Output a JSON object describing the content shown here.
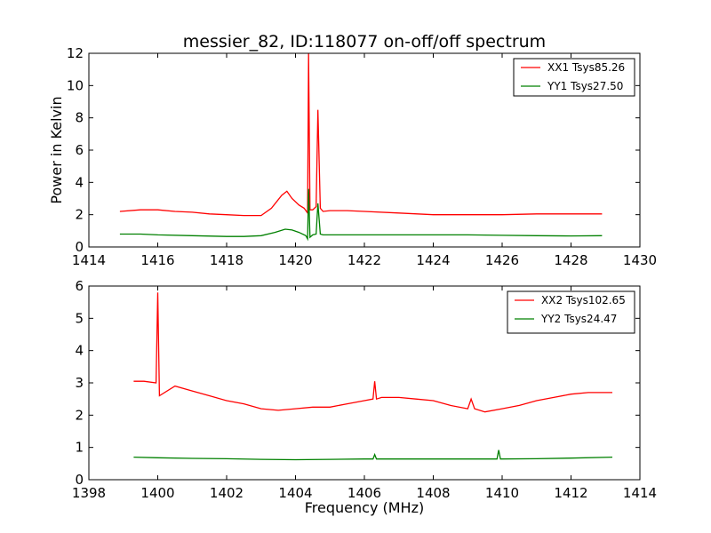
{
  "figure": {
    "title": "messier_82, ID:118077 on-off/off spectrum",
    "ylabel": "Power in Kelvin",
    "xlabel": "Frequency (MHz)"
  },
  "chart_data": [
    {
      "type": "line",
      "title": "messier_82, ID:118077 on-off/off spectrum",
      "xlabel": "",
      "ylabel": "Power in Kelvin",
      "xlim": [
        1414,
        1430
      ],
      "ylim": [
        0,
        12
      ],
      "xticks": [
        1414,
        1416,
        1418,
        1420,
        1422,
        1424,
        1426,
        1428,
        1430
      ],
      "yticks": [
        0,
        2,
        4,
        6,
        8,
        10,
        12
      ],
      "grid": false,
      "legend": "top-right",
      "series": [
        {
          "name": "XX1 Tsys85.26",
          "color": "#ff0000",
          "x": [
            1414.9,
            1415.5,
            1416.0,
            1416.5,
            1417.0,
            1417.5,
            1418.0,
            1418.5,
            1419.0,
            1419.3,
            1419.6,
            1419.75,
            1419.9,
            1420.1,
            1420.25,
            1420.35,
            1420.38,
            1420.42,
            1420.5,
            1420.6,
            1420.65,
            1420.72,
            1420.8,
            1421.0,
            1421.5,
            1422.0,
            1423.0,
            1424.0,
            1425.0,
            1426.0,
            1427.0,
            1428.0,
            1428.9
          ],
          "y": [
            2.2,
            2.3,
            2.3,
            2.2,
            2.15,
            2.05,
            2.0,
            1.95,
            1.95,
            2.4,
            3.2,
            3.45,
            3.0,
            2.6,
            2.4,
            2.1,
            12.0,
            2.3,
            2.3,
            2.5,
            8.5,
            2.4,
            2.2,
            2.25,
            2.25,
            2.2,
            2.1,
            2.0,
            2.0,
            2.0,
            2.05,
            2.05,
            2.05
          ]
        },
        {
          "name": "YY1 Tsys27.50",
          "color": "#008000",
          "x": [
            1414.9,
            1415.5,
            1416.0,
            1417.0,
            1418.0,
            1418.5,
            1419.0,
            1419.4,
            1419.7,
            1419.9,
            1420.1,
            1420.3,
            1420.35,
            1420.38,
            1420.42,
            1420.5,
            1420.6,
            1420.65,
            1420.72,
            1420.8,
            1421.0,
            1422.0,
            1423.0,
            1424.0,
            1425.0,
            1426.0,
            1427.0,
            1428.0,
            1428.9
          ],
          "y": [
            0.8,
            0.8,
            0.75,
            0.7,
            0.65,
            0.65,
            0.7,
            0.9,
            1.1,
            1.05,
            0.9,
            0.7,
            0.5,
            3.6,
            0.6,
            0.75,
            0.8,
            2.7,
            0.8,
            0.75,
            0.75,
            0.75,
            0.75,
            0.75,
            0.75,
            0.72,
            0.7,
            0.68,
            0.7
          ]
        }
      ]
    },
    {
      "type": "line",
      "title": "",
      "xlabel": "Frequency (MHz)",
      "ylabel": "",
      "xlim": [
        1398,
        1414
      ],
      "ylim": [
        0,
        6
      ],
      "xticks": [
        1398,
        1400,
        1402,
        1404,
        1406,
        1408,
        1410,
        1412,
        1414
      ],
      "yticks": [
        0,
        1,
        2,
        3,
        4,
        5,
        6
      ],
      "grid": false,
      "legend": "top-right",
      "series": [
        {
          "name": "XX2 Tsys102.65",
          "color": "#ff0000",
          "x": [
            1399.3,
            1399.6,
            1399.95,
            1400.0,
            1400.05,
            1400.5,
            1401.0,
            1401.5,
            1402.0,
            1402.5,
            1403.0,
            1403.5,
            1404.0,
            1404.5,
            1405.0,
            1405.5,
            1406.0,
            1406.25,
            1406.3,
            1406.35,
            1406.5,
            1407.0,
            1407.5,
            1408.0,
            1408.5,
            1409.0,
            1409.1,
            1409.2,
            1409.5,
            1410.0,
            1410.5,
            1411.0,
            1411.5,
            1412.0,
            1412.5,
            1413.2
          ],
          "y": [
            3.05,
            3.05,
            3.0,
            5.8,
            2.6,
            2.9,
            2.75,
            2.6,
            2.45,
            2.35,
            2.2,
            2.15,
            2.2,
            2.25,
            2.25,
            2.35,
            2.45,
            2.5,
            3.05,
            2.5,
            2.55,
            2.55,
            2.5,
            2.45,
            2.3,
            2.2,
            2.5,
            2.2,
            2.1,
            2.2,
            2.3,
            2.45,
            2.55,
            2.65,
            2.7,
            2.7
          ]
        },
        {
          "name": "YY2 Tsys24.47",
          "color": "#008000",
          "x": [
            1399.3,
            1400.0,
            1401.0,
            1402.0,
            1403.0,
            1404.0,
            1405.0,
            1406.0,
            1406.25,
            1406.3,
            1406.35,
            1407.0,
            1408.0,
            1409.0,
            1409.85,
            1409.9,
            1409.95,
            1411.0,
            1412.0,
            1413.2
          ],
          "y": [
            0.7,
            0.68,
            0.66,
            0.65,
            0.63,
            0.62,
            0.63,
            0.64,
            0.64,
            0.78,
            0.64,
            0.64,
            0.64,
            0.64,
            0.64,
            0.92,
            0.64,
            0.65,
            0.67,
            0.7
          ]
        }
      ]
    }
  ]
}
